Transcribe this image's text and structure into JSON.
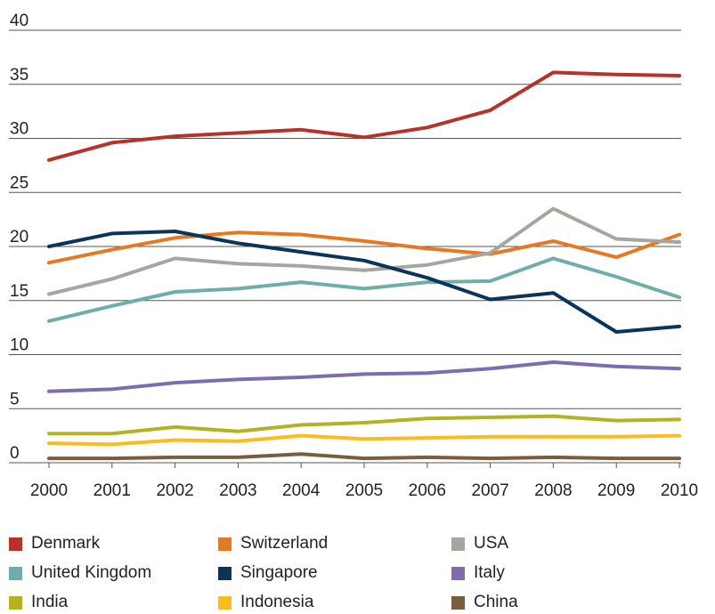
{
  "chart_data": {
    "type": "line",
    "title": "",
    "xlabel": "",
    "ylabel": "",
    "x": [
      2000,
      2001,
      2002,
      2003,
      2004,
      2005,
      2006,
      2007,
      2008,
      2009,
      2010
    ],
    "xticks": [
      "2000",
      "2001",
      "2002",
      "2003",
      "2004",
      "2005",
      "2006",
      "2007",
      "2008",
      "2009",
      "2010"
    ],
    "ylim": [
      0,
      40
    ],
    "yticks": [
      "0",
      "5",
      "10",
      "15",
      "20",
      "25",
      "30",
      "35",
      "40"
    ],
    "grid": "horizontal",
    "legend_position": "bottom",
    "series": [
      {
        "name": "Denmark",
        "color": "#b5332a",
        "values": [
          28.0,
          29.6,
          30.2,
          30.5,
          30.8,
          30.1,
          31.0,
          32.6,
          36.1,
          35.9,
          35.8
        ]
      },
      {
        "name": "Switzerland",
        "color": "#e87722",
        "values": [
          18.5,
          19.7,
          20.8,
          21.3,
          21.1,
          20.5,
          19.8,
          19.3,
          20.5,
          19.0,
          21.1
        ]
      },
      {
        "name": "USA",
        "color": "#a6a6a0",
        "values": [
          15.6,
          17.0,
          18.9,
          18.4,
          18.2,
          17.8,
          18.3,
          19.4,
          23.5,
          20.7,
          20.4
        ]
      },
      {
        "name": "United Kingdom",
        "color": "#6fada8",
        "values": [
          13.1,
          14.5,
          15.8,
          16.1,
          16.7,
          16.1,
          16.7,
          16.8,
          18.9,
          17.2,
          15.3
        ]
      },
      {
        "name": "Singapore",
        "color": "#0b3558",
        "values": [
          20.0,
          21.2,
          21.4,
          20.3,
          19.5,
          18.7,
          17.1,
          15.1,
          15.7,
          12.1,
          12.6
        ]
      },
      {
        "name": "Italy",
        "color": "#7f6bb0",
        "values": [
          6.6,
          6.8,
          7.4,
          7.7,
          7.9,
          8.2,
          8.3,
          8.7,
          9.3,
          8.9,
          8.7
        ]
      },
      {
        "name": "India",
        "color": "#b3b322",
        "values": [
          2.7,
          2.7,
          3.3,
          2.9,
          3.5,
          3.7,
          4.1,
          4.2,
          4.3,
          3.9,
          4.0
        ]
      },
      {
        "name": "Indonesia",
        "color": "#fbbd1d",
        "values": [
          1.8,
          1.7,
          2.1,
          2.0,
          2.5,
          2.2,
          2.3,
          2.4,
          2.4,
          2.4,
          2.5
        ]
      },
      {
        "name": "China",
        "color": "#7a5c3e",
        "values": [
          0.4,
          0.4,
          0.5,
          0.5,
          0.8,
          0.4,
          0.5,
          0.4,
          0.5,
          0.4,
          0.4
        ]
      }
    ]
  }
}
